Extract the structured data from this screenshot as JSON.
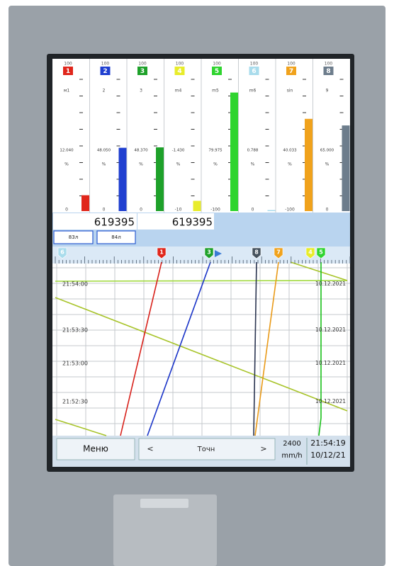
{
  "channels": [
    {
      "top": "100",
      "num": "1",
      "name": "м1",
      "value": "12.040",
      "unit": "%",
      "bottom": "0",
      "color": "#e0261b"
    },
    {
      "top": "100",
      "num": "2",
      "name": "2",
      "value": "48.050",
      "unit": "%",
      "bottom": "0",
      "color": "#1f3fd0"
    },
    {
      "top": "100",
      "num": "3",
      "name": "3",
      "value": "48.370",
      "unit": "%",
      "bottom": "0",
      "color": "#1ea12a"
    },
    {
      "top": "100",
      "num": "4",
      "name": "m4",
      "value": "-1.430",
      "unit": "%",
      "bottom": "-10",
      "color": "#e8ec2a"
    },
    {
      "top": "100",
      "num": "5",
      "name": "m5",
      "value": "79.975",
      "unit": "%",
      "bottom": "-100",
      "color": "#2fd42f"
    },
    {
      "top": "100",
      "num": "6",
      "name": "m6",
      "value": "0.788",
      "unit": "%",
      "bottom": "0",
      "color": "#a9dcec"
    },
    {
      "top": "100",
      "num": "7",
      "name": "sin",
      "value": "40.033",
      "unit": "%",
      "bottom": "-100",
      "color": "#f0a21c"
    },
    {
      "top": "100",
      "num": "8",
      "name": "9",
      "value": "65.000",
      "unit": "%",
      "bottom": "0",
      "color": "#6d7d8c"
    }
  ],
  "counters": [
    "619395",
    "619395"
  ],
  "counter_tabs": [
    "83л",
    "84л"
  ],
  "trend_markers": [
    {
      "num": "6",
      "color": "#a9dcec"
    },
    {
      "num": "1",
      "color": "#e0261b"
    },
    {
      "num": "3",
      "color": "#1ea12a"
    },
    {
      "num": "8",
      "color": "#46525e"
    },
    {
      "num": "7",
      "color": "#f0a21c"
    },
    {
      "num": "4",
      "color": "#e8ec2a"
    },
    {
      "num": "5",
      "color": "#2fd42f"
    }
  ],
  "times": [
    "21:54:00",
    "21:53:30",
    "21:53:00",
    "21:52:30"
  ],
  "dates": [
    "10.12.2021",
    "10.12.2021",
    "10.12.2021",
    "10.12.2021"
  ],
  "footer": {
    "menu": "Меню",
    "prev": "<",
    "mode": "Точн",
    "next": ">",
    "speed": "2400",
    "speed_unit": "mm/h",
    "time": "21:54:19",
    "date": "10/12/21"
  }
}
